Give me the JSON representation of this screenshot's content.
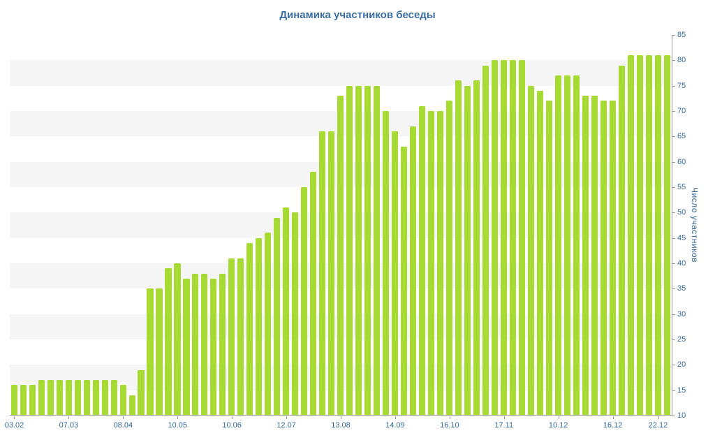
{
  "colors": {
    "bar": "#a8da34",
    "stripe": "#f5f5f5",
    "axis": "#999999",
    "text": "#33689e",
    "title": "#3a6ea5"
  },
  "chart_data": {
    "type": "bar",
    "title": "Динамика участников беседы",
    "xlabel": "",
    "ylabel": "Число участников",
    "ylim": [
      10,
      85
    ],
    "grid": "alternating horizontal gray bands every 5 units",
    "legend": "none",
    "y_ticks": [
      85,
      80,
      75,
      70,
      65,
      60,
      55,
      50,
      45,
      40,
      35,
      30,
      25,
      20,
      15,
      10
    ],
    "x_ticks": [
      {
        "label": "03.02",
        "bar": 0
      },
      {
        "label": "07.03",
        "bar": 6
      },
      {
        "label": "08.04",
        "bar": 12
      },
      {
        "label": "10.05",
        "bar": 18
      },
      {
        "label": "10.06",
        "bar": 24
      },
      {
        "label": "12.07",
        "bar": 30
      },
      {
        "label": "13.08",
        "bar": 36
      },
      {
        "label": "14.09",
        "bar": 42
      },
      {
        "label": "16.10",
        "bar": 48
      },
      {
        "label": "17.11",
        "bar": 54
      },
      {
        "label": "10.12",
        "bar": 60
      },
      {
        "label": "16.12",
        "bar": 66
      },
      {
        "label": "22.12",
        "bar": 71
      }
    ],
    "values": [
      16,
      16,
      16,
      17,
      17,
      17,
      17,
      17,
      17,
      17,
      17,
      17,
      16,
      14,
      19,
      35,
      35,
      39,
      40,
      37,
      38,
      38,
      37,
      38,
      41,
      41,
      44,
      45,
      46,
      49,
      51,
      50,
      55,
      58,
      66,
      66,
      73,
      75,
      75,
      75,
      75,
      70,
      66,
      63,
      67,
      71,
      70,
      70,
      72,
      76,
      75,
      76,
      79,
      80,
      80,
      80,
      80,
      75,
      74,
      72,
      77,
      77,
      77,
      73,
      73,
      72,
      72,
      79,
      81,
      81,
      81,
      81,
      81
    ]
  }
}
